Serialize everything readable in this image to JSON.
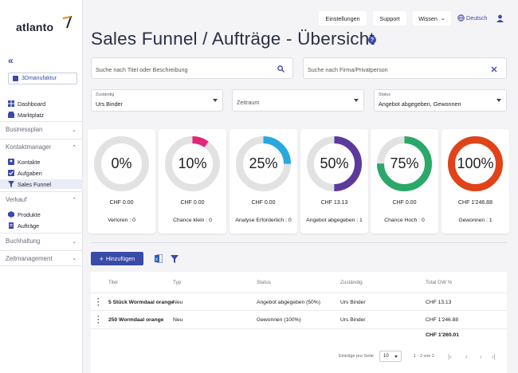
{
  "brand": "atlanto",
  "sidebar": {
    "company": "3Dmanufaktur",
    "top_items": [
      {
        "label": "Dashboard",
        "icon": "dashboard-icon"
      },
      {
        "label": "Marktplatz",
        "icon": "store-icon"
      }
    ],
    "groups": [
      {
        "label": "Businessplan",
        "expanded": false
      },
      {
        "label": "Kontaktmanager",
        "expanded": true
      },
      {
        "label": "Verkauf",
        "expanded": true
      },
      {
        "label": "Buchhaltung",
        "expanded": false
      },
      {
        "label": "Zeitmanagement",
        "expanded": false
      }
    ],
    "kontakt_items": [
      {
        "label": "Kontakte",
        "icon": "contacts-icon"
      },
      {
        "label": "Aufgaben",
        "icon": "tasks-icon"
      },
      {
        "label": "Sales Funnel",
        "icon": "funnel-icon",
        "active": true
      }
    ],
    "verkauf_items": [
      {
        "label": "Produkte",
        "icon": "box-icon"
      },
      {
        "label": "Aufträge",
        "icon": "orders-icon"
      }
    ]
  },
  "topbar": {
    "settings": "Einstellungen",
    "support": "Support",
    "wissen": "Wissen",
    "language": "Deutsch"
  },
  "page": {
    "title": "Sales Funnel / Aufträge - Übersicht"
  },
  "filters": {
    "search_title_placeholder": "Suche nach Titel oder Beschreibung",
    "search_company_placeholder": "Suche nach Firma/Privatperson",
    "zustaendig_label": "Zuständig",
    "zustaendig_value": "Urs Binder",
    "zeitraum_placeholder": "Zeitraum",
    "status_label": "Status",
    "status_value": "Angebot abgegeben, Gewonnen"
  },
  "funnel_cards": [
    {
      "percent_label": "0%",
      "fraction": 0.0,
      "amount": "CHF 0.00",
      "stage": "Verloren : 0",
      "color": "#e0e0e0"
    },
    {
      "percent_label": "10%",
      "fraction": 0.1,
      "amount": "CHF 0.00",
      "stage": "Chance klein : 0",
      "color": "#e0287a"
    },
    {
      "percent_label": "25%",
      "fraction": 0.25,
      "amount": "CHF 0.00",
      "stage": "Analyse Erforderlich : 0",
      "color": "#29a8df"
    },
    {
      "percent_label": "50%",
      "fraction": 0.5,
      "amount": "CHF 13.13",
      "stage": "Angebot abgegeben : 1",
      "color": "#5b3a9c"
    },
    {
      "percent_label": "75%",
      "fraction": 0.75,
      "amount": "CHF 0.00",
      "stage": "Chance Hoch : 0",
      "color": "#2aa86a"
    },
    {
      "percent_label": "100%",
      "fraction": 1.0,
      "amount": "CHF 1'246.88",
      "stage": "Gewonnen : 1",
      "color": "#e0421a"
    }
  ],
  "actions": {
    "add": "Hinzufügen"
  },
  "table": {
    "headers": [
      "Titel",
      "Typ",
      "Status",
      "Zuständig",
      "Total GW %"
    ],
    "rows": [
      [
        "5 Stück Wormdaal orange",
        "Neu",
        "Angebot abgegeben (50%)",
        "Urs Binder",
        "CHF 13.13"
      ],
      [
        "250 Wormdaal orange",
        "Neu",
        "Gewonnen (100%)",
        "Urs Binder",
        "CHF 1'246.88"
      ]
    ],
    "total": "CHF 1'260.01",
    "per_page_label": "Einträge pro Seite",
    "per_page_value": "10",
    "range": "1 - 2 von 2"
  }
}
